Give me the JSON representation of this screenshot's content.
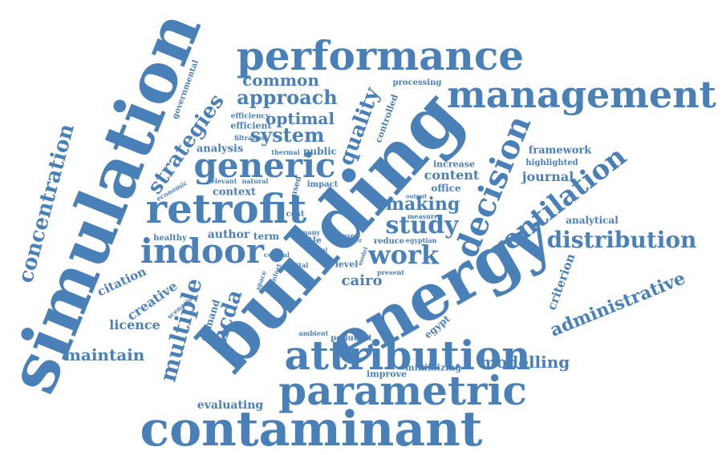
{
  "color": "#4a80b8",
  "words": [
    "simulation",
    "building",
    "energy",
    "contaminant",
    "parametric",
    "attribution",
    "performance",
    "management",
    "retrofit",
    "generic",
    "indoor",
    "decision",
    "ventilation",
    "distribution",
    "concentration",
    "strategies",
    "quality",
    "approach",
    "common",
    "system",
    "optimal",
    "work",
    "study",
    "making",
    "content",
    "journal",
    "framework",
    "highlighted",
    "increase",
    "office",
    "analytical",
    "administrative",
    "criterion",
    "modelling",
    "maintain",
    "licence",
    "creative",
    "multiple",
    "citation",
    "mcda",
    "demand",
    "author",
    "term",
    "cairo",
    "context",
    "analysis",
    "efficient",
    "efficiency",
    "filtration",
    "governmental",
    "economic",
    "relevant",
    "natural",
    "thermal",
    "public",
    "used",
    "impact",
    "controlled",
    "processing",
    "output",
    "measure",
    "cost",
    "many",
    "title",
    "case",
    "paper",
    "reduce",
    "egyptian",
    "central",
    "capital",
    "total",
    "model",
    "level",
    "present",
    "space",
    "comfort",
    "scenario",
    "ambient",
    "pollutant",
    "egypt",
    "minimizing",
    "improve",
    "evaluating",
    "healthy"
  ]
}
